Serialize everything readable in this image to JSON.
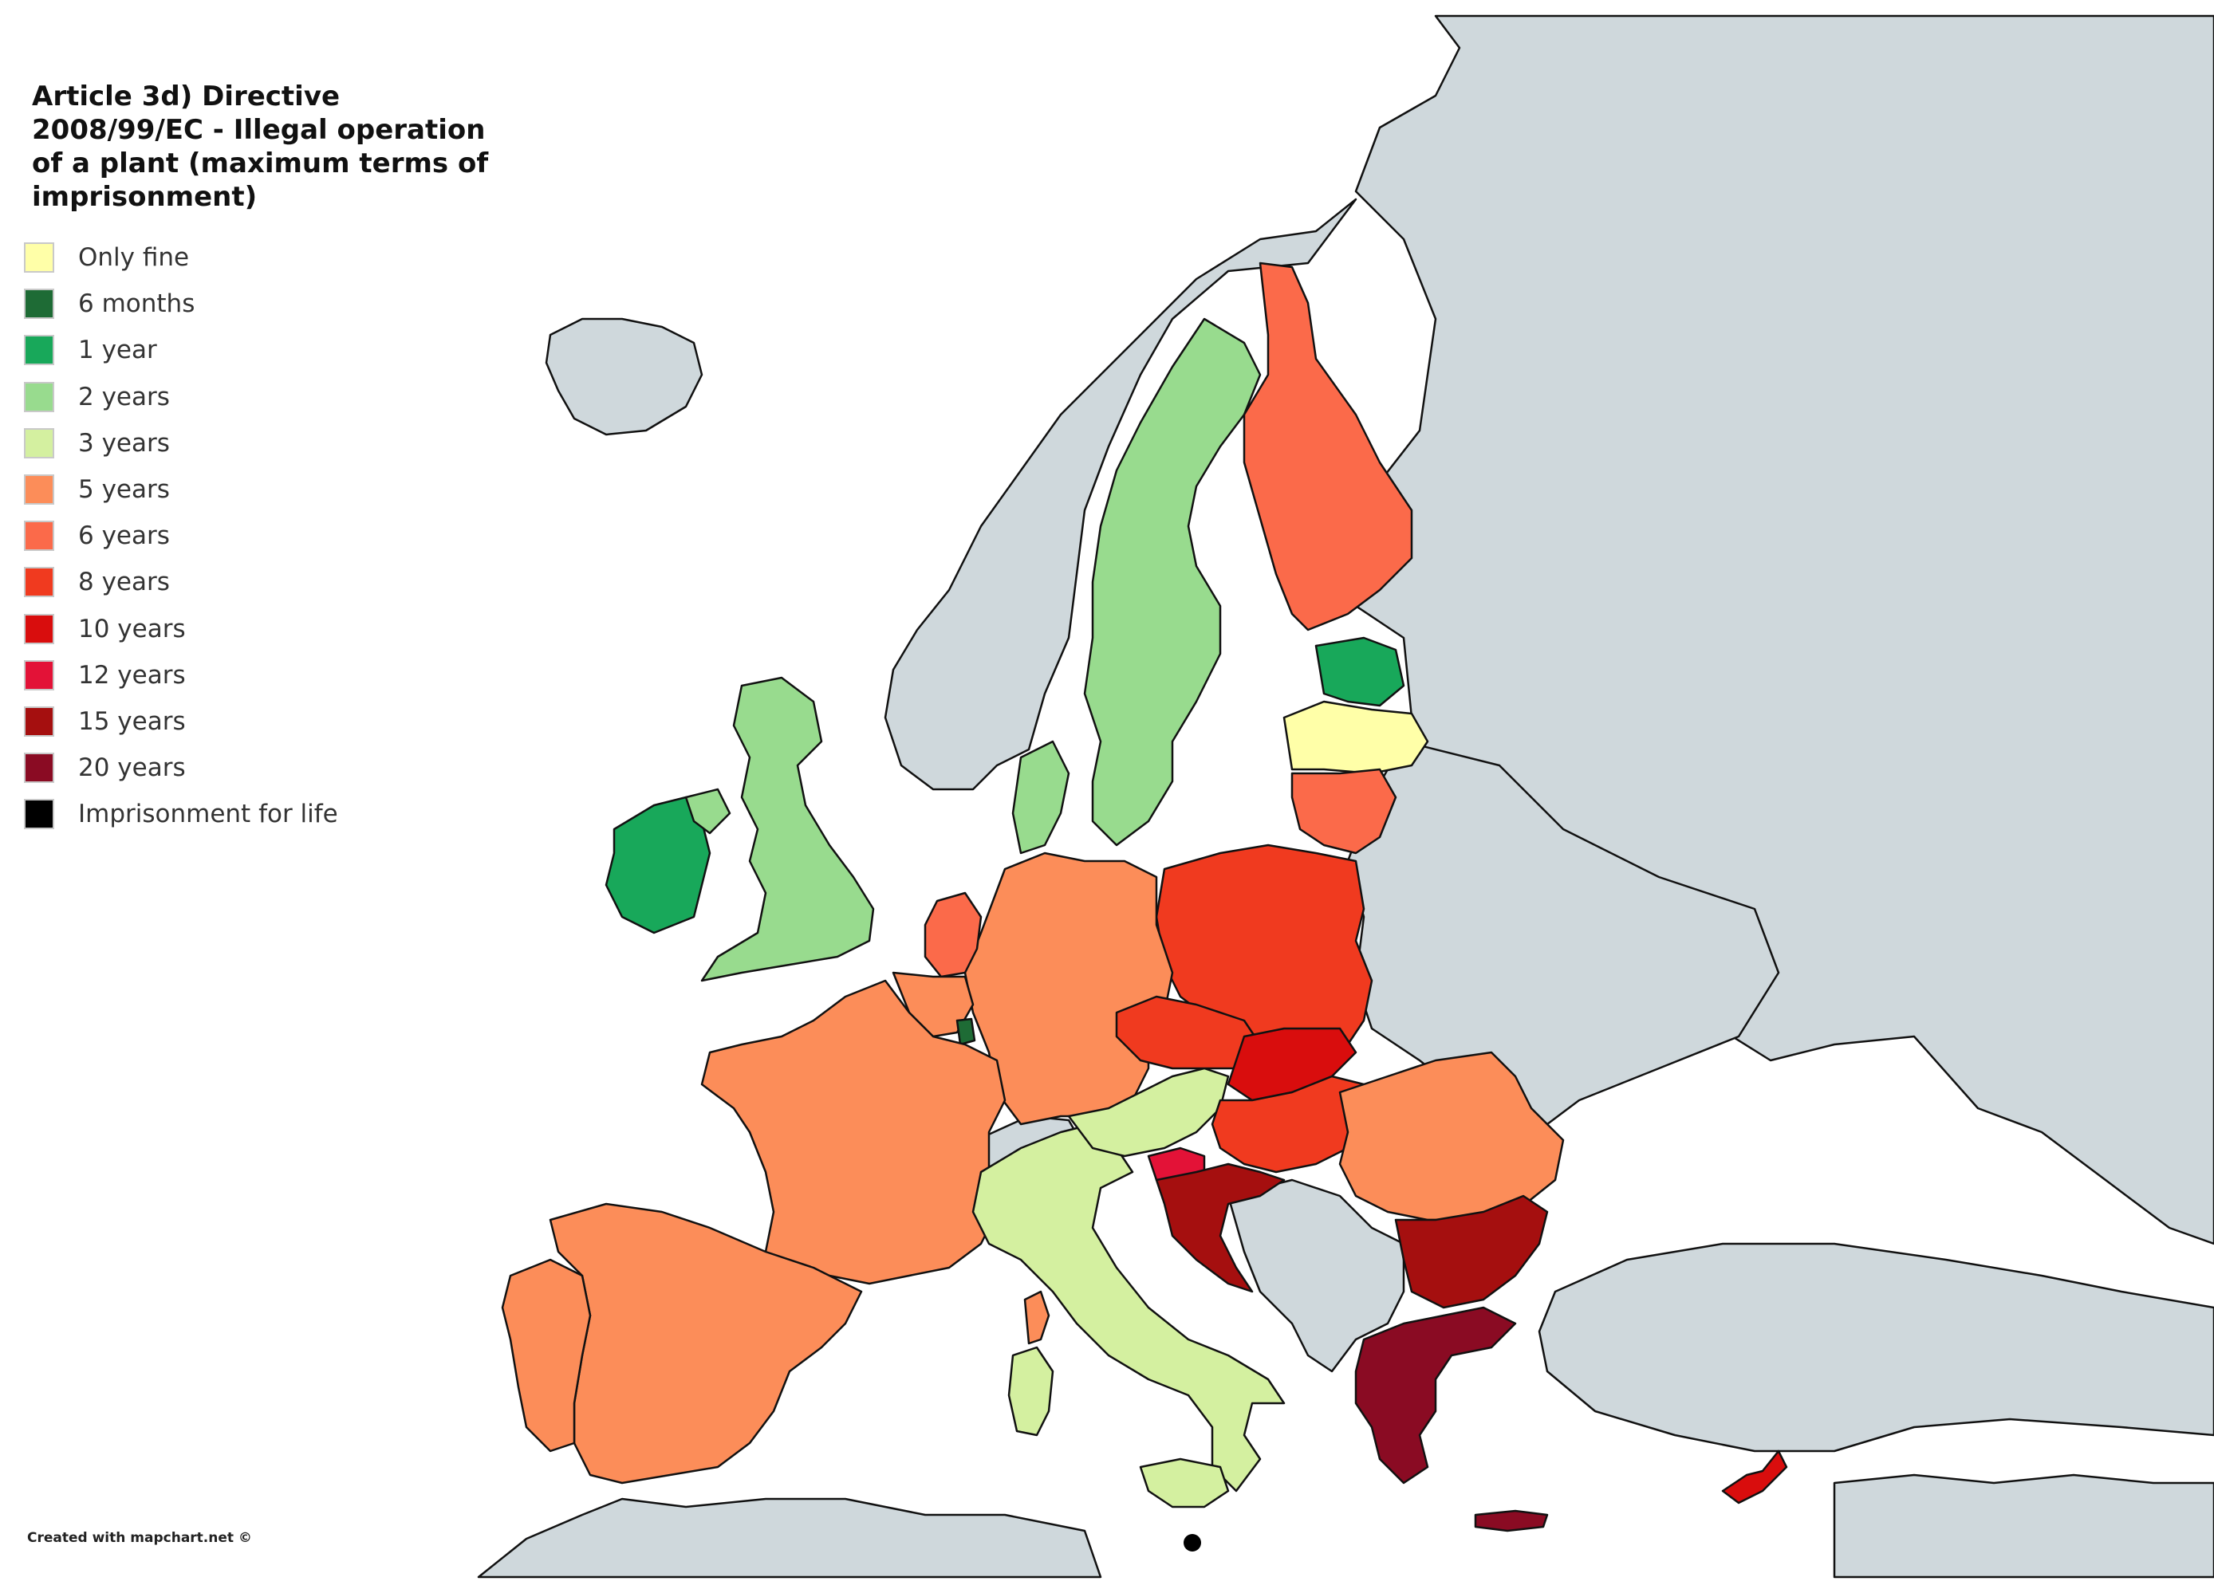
{
  "legend": {
    "title": "Article 3d) Directive 2008/99/EC - Illegal operation of a plant (maximum terms of imprisonment)",
    "items": [
      {
        "label": "Only fine",
        "color": "#ffffa8"
      },
      {
        "label": "6 months",
        "color": "#1e6b35"
      },
      {
        "label": "1 year",
        "color": "#18a85a"
      },
      {
        "label": "2 years",
        "color": "#98db8e"
      },
      {
        "label": "3 years",
        "color": "#d4f0a0"
      },
      {
        "label": "5 years",
        "color": "#fc8d59"
      },
      {
        "label": "6 years",
        "color": "#fb6a4a"
      },
      {
        "label": "8 years",
        "color": "#f03a1f"
      },
      {
        "label": "10 years",
        "color": "#d90d0d"
      },
      {
        "label": "12 years",
        "color": "#e31237"
      },
      {
        "label": "15 years",
        "color": "#a50f0f"
      },
      {
        "label": "20 years",
        "color": "#8a0b23"
      },
      {
        "label": "Imprisonment for life",
        "color": "#000000"
      }
    ]
  },
  "credit": "Created with mapchart.net ©",
  "colors": {
    "non_member": "#cfd8dc",
    "border": "#111111",
    "background": "#ffffff"
  },
  "regions": [
    {
      "name": "Ireland",
      "category": "1 year"
    },
    {
      "name": "Northern Ireland",
      "category": "2 years"
    },
    {
      "name": "United Kingdom",
      "category": "2 years"
    },
    {
      "name": "Sweden",
      "category": "2 years"
    },
    {
      "name": "Denmark",
      "category": "2 years"
    },
    {
      "name": "Finland",
      "category": "6 years"
    },
    {
      "name": "Estonia",
      "category": "1 year"
    },
    {
      "name": "Latvia",
      "category": "Only fine"
    },
    {
      "name": "Lithuania",
      "category": "6 years"
    },
    {
      "name": "Poland",
      "category": "8 years"
    },
    {
      "name": "Germany",
      "category": "5 years"
    },
    {
      "name": "Netherlands",
      "category": "6 years"
    },
    {
      "name": "Belgium",
      "category": "5 years"
    },
    {
      "name": "Luxembourg",
      "category": "6 months"
    },
    {
      "name": "France",
      "category": "5 years"
    },
    {
      "name": "Spain",
      "category": "5 years"
    },
    {
      "name": "Portugal",
      "category": "5 years"
    },
    {
      "name": "Italy",
      "category": "3 years"
    },
    {
      "name": "Austria",
      "category": "3 years"
    },
    {
      "name": "Czechia",
      "category": "8 years"
    },
    {
      "name": "Slovakia",
      "category": "10 years"
    },
    {
      "name": "Hungary",
      "category": "8 years"
    },
    {
      "name": "Slovenia",
      "category": "12 years"
    },
    {
      "name": "Croatia",
      "category": "15 years"
    },
    {
      "name": "Romania",
      "category": "5 years"
    },
    {
      "name": "Bulgaria",
      "category": "15 years"
    },
    {
      "name": "Greece",
      "category": "20 years"
    },
    {
      "name": "Cyprus",
      "category": "10 years"
    },
    {
      "name": "Malta",
      "category": "Imprisonment for life"
    }
  ]
}
